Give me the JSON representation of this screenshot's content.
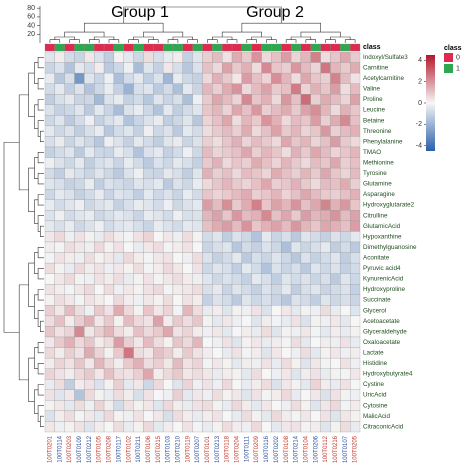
{
  "chart_data": {
    "type": "heatmap",
    "annotations": [
      "Group 1",
      "Group 2"
    ],
    "class_title": "class",
    "legend": {
      "title": "class",
      "entries": [
        {
          "label": "0",
          "color": "#e0294f"
        },
        {
          "label": "1",
          "color": "#2ea84e"
        }
      ]
    },
    "label_colors": [
      "#c0392b",
      "#2c4f9e"
    ],
    "colorscale": [
      "#2a5fa8",
      "#f6f6f6",
      "#b2182b"
    ],
    "colorbar": {
      "lim": [
        -4.5,
        4.5
      ],
      "ticks": [
        4,
        2,
        0,
        -2,
        -4
      ]
    },
    "dendrogram_ylim": [
      0,
      85
    ],
    "dendrogram_yticks": [
      20,
      40,
      60,
      80
    ],
    "columns": [
      "100T0201",
      "100T0114",
      "100T0203",
      "100T0109",
      "100T0212",
      "100T0105",
      "100T0208",
      "100T0117",
      "100T0102",
      "100T0211",
      "100T0106",
      "100T0215",
      "100T0103",
      "100T0210",
      "100T0119",
      "100T0207",
      "100T0101",
      "100T0213",
      "100T0118",
      "100T0204",
      "100T0111",
      "100T0209",
      "100T0116",
      "100T0202",
      "100T0108",
      "100T0214",
      "100T0104",
      "100T0206",
      "100T0112",
      "100T0216",
      "100T0107",
      "100T0205"
    ],
    "column_classes": [
      0,
      1,
      0,
      1,
      1,
      0,
      0,
      1,
      0,
      1,
      0,
      0,
      1,
      1,
      0,
      1,
      0,
      1,
      0,
      0,
      1,
      0,
      1,
      1,
      0,
      1,
      0,
      1,
      0,
      0,
      1,
      0
    ],
    "rows": [
      "Indoxyl/Sulfate3",
      "Carnitine",
      "Acetylcarnitine",
      "Valine",
      "Proline",
      "Leucine",
      "Betaine",
      "Threonine",
      "Phenylalanine",
      "TMAO",
      "Methionine",
      "Tyrosine",
      "Glutamine",
      "Asparagine",
      "Hydroxyglutarate2",
      "Citrulline",
      "GlutamicAcid",
      "Hypoxanthine",
      "Dimethylguanosine",
      "Aconitate",
      "Pyruvic acid4",
      "KynurenicAcid",
      "Hydroxyproline",
      "Succinate",
      "Glycerol",
      "Acetoacetate",
      "Glyceraldehyde",
      "Oxaloacetate",
      "Lactate",
      "Histidine",
      "Hydroxybutyrate4",
      "Cystine",
      "UricAcid",
      "Cytosine",
      "MalicAcid",
      "CitraconicAcid"
    ],
    "values": [
      [
        -0.5,
        0.2,
        -0.8,
        -1.0,
        0.3,
        -0.6,
        -1.2,
        0.1,
        -0.4,
        -0.9,
        0.5,
        -0.7,
        -0.3,
        0.2,
        -1.1,
        -0.5,
        0.8,
        1.2,
        0.4,
        1.5,
        0.9,
        2.0,
        0.6,
        1.1,
        1.8,
        0.7,
        1.3,
        2.4,
        0.5,
        1.0,
        1.6,
        0.9
      ],
      [
        -1.0,
        -0.6,
        -1.5,
        -0.4,
        -0.8,
        0.2,
        -1.3,
        -0.9,
        -0.2,
        -1.7,
        -0.5,
        -1.1,
        0.3,
        -0.7,
        -1.4,
        -0.6,
        1.1,
        0.6,
        1.7,
        0.9,
        1.4,
        0.5,
        2.2,
        1.0,
        0.8,
        1.9,
        1.2,
        0.7,
        2.6,
        1.3,
        0.9,
        1.5
      ],
      [
        -0.3,
        -1.4,
        -0.7,
        -2.8,
        -0.5,
        -1.0,
        -0.2,
        -1.6,
        -0.8,
        -0.4,
        -1.2,
        -0.6,
        -1.9,
        -0.3,
        -0.9,
        -1.1,
        0.6,
        1.4,
        0.9,
        0.3,
        1.8,
        1.1,
        0.7,
        2.1,
        1.3,
        0.5,
        1.6,
        1.0,
        0.8,
        2.3,
        1.2,
        0.4
      ],
      [
        -0.8,
        -0.4,
        -1.2,
        -0.6,
        -1.5,
        -0.9,
        -0.3,
        -1.1,
        -2.0,
        -0.7,
        -0.5,
        -1.3,
        -0.8,
        -1.6,
        -0.4,
        -1.0,
        1.3,
        0.8,
        1.5,
        2.0,
        0.6,
        1.2,
        1.7,
        0.9,
        1.1,
        2.5,
        0.7,
        1.4,
        1.0,
        1.8,
        0.5,
        1.2
      ],
      [
        -1.2,
        -0.7,
        -0.4,
        -1.0,
        -0.9,
        -1.8,
        -0.6,
        -0.3,
        -1.1,
        -0.8,
        -1.4,
        -0.5,
        -1.0,
        -0.7,
        -1.6,
        -0.2,
        0.9,
        1.6,
        1.2,
        0.7,
        2.2,
        1.0,
        1.4,
        0.6,
        1.9,
        1.1,
        2.8,
        0.8,
        1.5,
        1.2,
        0.7,
        1.7
      ],
      [
        -0.6,
        -1.1,
        -0.9,
        -0.5,
        -1.3,
        -0.4,
        -1.0,
        -1.7,
        -0.6,
        -0.3,
        -0.9,
        -1.5,
        -0.4,
        -1.2,
        -0.8,
        -0.5,
        1.0,
        1.3,
        0.7,
        1.6,
        1.1,
        1.9,
        0.8,
        1.2,
        1.5,
        0.9,
        1.7,
        2.1,
        1.3,
        0.6,
        1.4,
        1.0
      ],
      [
        -0.9,
        -0.5,
        -1.3,
        -0.8,
        -0.2,
        -1.1,
        -0.7,
        -0.4,
        -1.5,
        -1.0,
        -0.6,
        -0.3,
        -1.2,
        -0.9,
        -0.5,
        -1.4,
        0.7,
        1.1,
        1.6,
        0.5,
        1.3,
        0.9,
        2.0,
        1.4,
        0.6,
        1.2,
        1.0,
        1.8,
        0.8,
        1.5,
        2.2,
        1.1
      ],
      [
        -0.4,
        -0.9,
        -0.6,
        -1.2,
        -0.7,
        -0.3,
        -1.4,
        -0.8,
        -0.5,
        -1.1,
        -0.2,
        -0.9,
        -0.6,
        -1.3,
        -0.4,
        -0.8,
        0.5,
        0.9,
        1.2,
        0.8,
        1.5,
        0.6,
        1.1,
        1.7,
        0.9,
        1.3,
        0.7,
        1.0,
        1.9,
        0.8,
        1.2,
        1.4
      ],
      [
        -0.7,
        -0.3,
        -1.0,
        -0.5,
        -0.9,
        -1.4,
        -0.2,
        -0.6,
        -1.1,
        -0.4,
        -0.8,
        -1.2,
        -0.5,
        -0.3,
        -1.0,
        -0.6,
        0.8,
        0.5,
        1.0,
        1.4,
        0.7,
        1.2,
        0.9,
        0.6,
        1.6,
        1.0,
        1.3,
        0.7,
        1.1,
        1.8,
        0.9,
        0.6
      ],
      [
        -1.1,
        -0.8,
        -0.5,
        -1.3,
        -0.4,
        -0.9,
        -1.0,
        -0.3,
        -0.7,
        -1.5,
        -0.6,
        -0.4,
        -1.1,
        -0.8,
        -0.2,
        -0.9,
        1.2,
        0.7,
        0.9,
        1.1,
        1.6,
        0.8,
        1.3,
        1.0,
        0.5,
        1.4,
        0.9,
        1.6,
        1.2,
        0.7,
        1.0,
        1.3
      ],
      [
        -0.2,
        -0.6,
        -0.9,
        -0.4,
        -1.2,
        -0.7,
        -0.5,
        -1.0,
        -0.3,
        -0.8,
        -1.3,
        -0.6,
        -0.9,
        -0.4,
        -0.7,
        -1.1,
        0.9,
        1.4,
        0.6,
        1.0,
        0.8,
        1.5,
        1.1,
        0.7,
        1.3,
        0.9,
        0.6,
        1.2,
        1.0,
        1.6,
        0.8,
        1.1
      ],
      [
        -0.8,
        -1.2,
        -0.4,
        -0.7,
        -1.0,
        -0.5,
        -0.9,
        -1.3,
        -0.6,
        -0.2,
        -0.9,
        -1.0,
        -0.4,
        -0.7,
        -1.2,
        -0.5,
        1.4,
        0.8,
        1.1,
        0.6,
        1.2,
        1.0,
        0.7,
        1.5,
        1.1,
        0.8,
        1.3,
        0.9,
        1.6,
        1.0,
        0.7,
        1.2
      ],
      [
        -0.5,
        -0.7,
        -1.1,
        -0.9,
        -0.3,
        -1.2,
        -0.6,
        -0.8,
        -1.0,
        -0.5,
        -0.7,
        -0.4,
        -1.3,
        -0.6,
        -0.9,
        -0.3,
        0.6,
        1.0,
        1.3,
        0.9,
        0.7,
        1.1,
        1.6,
        0.8,
        1.0,
        1.4,
        0.9,
        0.6,
        1.2,
        1.1,
        1.5,
        0.8
      ],
      [
        -0.9,
        -0.4,
        -0.6,
        -1.1,
        -0.8,
        -0.3,
        -1.0,
        -0.5,
        -0.7,
        -1.2,
        -0.4,
        -0.9,
        -0.6,
        -1.0,
        -0.3,
        -0.8,
        1.0,
        0.7,
        0.9,
        1.2,
        1.5,
        0.8,
        1.0,
        1.3,
        0.7,
        1.1,
        1.6,
        1.2,
        0.9,
        0.8,
        1.1,
        1.4
      ],
      [
        -0.3,
        -0.8,
        -0.5,
        -0.2,
        -0.9,
        -0.6,
        -0.4,
        -1.1,
        -0.7,
        -0.3,
        -0.5,
        -0.8,
        -0.2,
        -0.9,
        -0.6,
        -0.4,
        1.8,
        1.2,
        2.1,
        0.9,
        1.5,
        2.4,
        1.0,
        1.7,
        1.3,
        2.0,
        1.1,
        1.6,
        2.3,
        1.4,
        1.9,
        1.0
      ],
      [
        -0.6,
        -0.2,
        -0.8,
        -0.5,
        -0.3,
        -0.9,
        -0.7,
        -0.4,
        -0.6,
        -1.0,
        -0.3,
        -0.5,
        -0.8,
        -0.2,
        -0.7,
        -0.6,
        1.3,
        1.7,
        1.0,
        1.9,
        1.2,
        1.4,
        2.2,
        1.1,
        1.6,
        0.9,
        1.8,
        1.3,
        1.5,
        2.0,
        1.2,
        1.7
      ],
      [
        -0.4,
        -0.7,
        -0.3,
        -0.9,
        -0.6,
        -0.2,
        -0.8,
        -0.5,
        -0.4,
        -0.7,
        -1.0,
        -0.3,
        -0.6,
        -0.8,
        -0.4,
        -0.5,
        1.1,
        1.5,
        1.8,
        1.2,
        2.0,
        1.0,
        1.4,
        1.7,
        1.2,
        1.9,
        1.3,
        1.0,
        1.6,
        1.4,
        1.1,
        1.8
      ],
      [
        0.3,
        0.6,
        -0.2,
        0.4,
        0.1,
        -0.3,
        0.5,
        0.2,
        -0.1,
        0.4,
        0.7,
        0.0,
        0.3,
        -0.2,
        0.5,
        0.1,
        -0.8,
        -0.5,
        -1.2,
        -0.6,
        -0.9,
        -1.5,
        -0.4,
        -1.0,
        -0.7,
        -1.3,
        -0.5,
        -0.8,
        -1.1,
        -0.6,
        -0.9,
        -0.4
      ],
      [
        0.2,
        -0.1,
        0.5,
        0.3,
        -0.2,
        0.6,
        0.1,
        0.4,
        0.0,
        -0.3,
        0.3,
        0.5,
        -0.1,
        0.2,
        0.4,
        0.0,
        -1.0,
        -0.7,
        -0.5,
        -1.4,
        -0.8,
        -1.1,
        -0.6,
        -0.9,
        -1.6,
        -0.5,
        -1.0,
        -0.7,
        -0.4,
        -1.2,
        -0.8,
        -1.3
      ],
      [
        -0.1,
        0.4,
        0.2,
        -0.2,
        0.5,
        0.1,
        0.3,
        -0.4,
        0.6,
        0.2,
        -0.1,
        0.3,
        0.4,
        0.0,
        -0.2,
        0.5,
        -0.6,
        -1.1,
        -0.8,
        -0.4,
        -1.3,
        -0.7,
        -1.0,
        -0.5,
        -0.9,
        -1.4,
        -0.6,
        -1.1,
        -0.8,
        -0.5,
        -1.2,
        -0.7
      ],
      [
        0.5,
        0.1,
        -0.3,
        0.6,
        0.2,
        0.4,
        -0.2,
        0.3,
        0.1,
        0.5,
        -0.1,
        0.2,
        0.6,
        0.3,
        0.0,
        0.4,
        -0.9,
        -0.5,
        -0.7,
        -1.2,
        -0.4,
        -0.8,
        -1.5,
        -0.6,
        -1.0,
        -0.7,
        -1.3,
        -0.5,
        -0.9,
        -0.6,
        -1.1,
        -0.8
      ],
      [
        0.0,
        0.3,
        0.6,
        0.1,
        -0.2,
        0.4,
        0.2,
        0.5,
        -0.3,
        0.1,
        0.4,
        -0.1,
        0.3,
        0.5,
        0.2,
        -0.2,
        -0.5,
        -0.9,
        -0.6,
        -0.8,
        -1.1,
        -0.4,
        -0.7,
        -1.2,
        -0.5,
        -0.8,
        -0.6,
        -1.0,
        -0.7,
        -1.3,
        -0.5,
        -0.9
      ],
      [
        0.4,
        0.2,
        -0.1,
        0.3,
        0.6,
        0.0,
        0.5,
        -0.2,
        0.3,
        0.1,
        0.4,
        0.6,
        -0.1,
        0.2,
        0.3,
        0.5,
        -0.7,
        -0.4,
        -1.0,
        -0.5,
        -0.8,
        -1.1,
        -0.6,
        -0.9,
        -0.4,
        -1.2,
        -0.7,
        -0.5,
        -1.0,
        -0.8,
        -0.6,
        -1.1
      ],
      [
        0.1,
        0.5,
        0.3,
        -0.1,
        0.4,
        0.2,
        0.0,
        0.6,
        0.2,
        -0.2,
        0.3,
        0.1,
        0.5,
        0.0,
        0.4,
        0.2,
        -1.1,
        -0.6,
        -0.8,
        -1.3,
        -0.5,
        -0.9,
        -0.7,
        -1.0,
        -1.4,
        -0.6,
        -0.8,
        -1.2,
        -0.5,
        -0.9,
        -0.7,
        -1.0
      ],
      [
        0.8,
        0.3,
        1.2,
        0.5,
        -0.2,
        0.9,
        0.4,
        1.5,
        0.6,
        0.1,
        1.0,
        0.3,
        0.7,
        -0.1,
        1.3,
        0.5,
        -0.3,
        0.2,
        -0.5,
        0.1,
        -0.2,
        0.4,
        -0.6,
        0.0,
        0.3,
        -0.4,
        0.1,
        -0.2,
        0.5,
        -0.3,
        0.0,
        -0.5
      ],
      [
        0.5,
        1.1,
        0.2,
        0.8,
        1.4,
        0.3,
        0.9,
        0.1,
        1.2,
        0.6,
        0.4,
        1.7,
        0.2,
        0.9,
        0.5,
        1.0,
        0.1,
        -0.4,
        0.3,
        -0.2,
        0.0,
        -0.5,
        0.2,
        -0.1,
        -0.3,
        0.4,
        -0.6,
        0.1,
        -0.2,
        0.3,
        -0.4,
        0.0
      ],
      [
        1.0,
        0.4,
        0.7,
        2.2,
        0.3,
        0.8,
        1.3,
        0.5,
        0.2,
        1.1,
        0.6,
        0.9,
        1.6,
        0.4,
        0.7,
        0.2,
        -0.2,
        0.3,
        -0.4,
        0.0,
        0.2,
        -0.3,
        0.5,
        -0.5,
        0.1,
        -0.2,
        0.3,
        -0.1,
        -0.4,
        0.2,
        -0.3,
        0.1
      ],
      [
        0.3,
        0.9,
        1.4,
        0.6,
        1.0,
        0.2,
        0.5,
        1.8,
        0.8,
        0.3,
        1.2,
        0.5,
        0.1,
        1.0,
        0.6,
        1.3,
        0.0,
        -0.2,
        0.4,
        -0.5,
        0.1,
        0.3,
        -0.3,
        0.2,
        -0.1,
        0.5,
        -0.4,
        0.0,
        0.2,
        -0.2,
        0.4,
        -0.3
      ],
      [
        0.6,
        0.2,
        0.8,
        0.4,
        1.5,
        0.7,
        0.1,
        0.9,
        2.6,
        0.5,
        0.3,
        1.1,
        0.8,
        0.2,
        0.9,
        0.4,
        0.2,
        0.0,
        -0.3,
        0.4,
        -0.1,
        0.2,
        -0.5,
        0.3,
        0.0,
        -0.2,
        0.5,
        -0.4,
        0.1,
        0.3,
        -0.2,
        0.2
      ],
      [
        0.2,
        0.7,
        0.4,
        1.0,
        0.3,
        1.3,
        0.6,
        0.2,
        0.9,
        1.4,
        0.5,
        0.8,
        0.3,
        1.2,
        0.4,
        0.7,
        -0.1,
        0.3,
        0.1,
        -0.4,
        0.2,
        -0.2,
        0.4,
        -0.3,
        0.5,
        0.1,
        -0.5,
        0.3,
        -0.1,
        0.0,
        0.4,
        -0.2
      ],
      [
        0.7,
        0.4,
        0.2,
        0.6,
        0.9,
        0.3,
        1.1,
        0.5,
        0.4,
        0.8,
        1.6,
        0.2,
        0.6,
        0.9,
        0.3,
        0.5,
        0.3,
        -0.3,
        0.2,
        0.1,
        -0.4,
        0.5,
        0.0,
        -0.2,
        0.3,
        -0.5,
        0.2,
        0.4,
        -0.3,
        0.1,
        -0.1,
        0.3
      ],
      [
        -0.3,
        0.5,
        -1.2,
        0.2,
        0.4,
        -0.6,
        0.1,
        0.8,
        -0.4,
        0.3,
        -0.9,
        0.6,
        0.0,
        -0.5,
        0.7,
        -0.2,
        0.4,
        -0.2,
        0.6,
        0.0,
        -0.3,
        0.2,
        0.5,
        -0.6,
        0.3,
        0.1,
        -0.4,
        0.7,
        0.2,
        -0.3,
        0.4,
        0.0
      ],
      [
        0.4,
        -0.5,
        0.3,
        -1.5,
        0.6,
        0.1,
        -0.3,
        0.5,
        0.2,
        -0.7,
        0.4,
        0.0,
        -0.2,
        0.8,
        -0.4,
        0.3,
        -0.2,
        0.5,
        0.1,
        0.3,
        -0.5,
        0.4,
        -0.1,
        0.2,
        0.6,
        -0.3,
        0.0,
        0.3,
        -0.6,
        0.4,
        0.1,
        -0.2
      ],
      [
        0.1,
        0.3,
        -0.4,
        0.5,
        -0.2,
        0.7,
        0.2,
        -0.8,
        0.4,
        0.1,
        0.3,
        -0.5,
        0.6,
        0.2,
        -0.3,
        0.4,
        0.5,
        0.1,
        -0.3,
        0.6,
        0.2,
        -0.4,
        0.3,
        0.0,
        -0.2,
        0.5,
        0.1,
        -0.5,
        0.3,
        0.6,
        -0.1,
        0.2
      ],
      [
        -0.6,
        0.2,
        0.5,
        -0.1,
        0.3,
        -0.4,
        0.6,
        0.1,
        -0.2,
        0.4,
        0.0,
        0.3,
        -0.7,
        0.5,
        0.2,
        -0.3,
        0.2,
        0.4,
        0.0,
        -0.3,
        0.5,
        0.1,
        -0.4,
        0.6,
        0.2,
        -0.1,
        0.3,
        0.0,
        0.4,
        -0.5,
        0.3,
        0.1
      ],
      [
        0.3,
        -0.2,
        0.1,
        0.4,
        -0.5,
        0.2,
        0.0,
        0.5,
        -0.3,
        0.1,
        0.6,
        -0.4,
        0.2,
        0.0,
        0.4,
        -0.1,
        -0.3,
        0.1,
        0.5,
        0.2,
        -0.2,
        0.6,
        0.0,
        -0.4,
        0.3,
        0.4,
        -0.1,
        0.2,
        -0.5,
        0.1,
        0.5,
        -0.3
      ]
    ]
  }
}
